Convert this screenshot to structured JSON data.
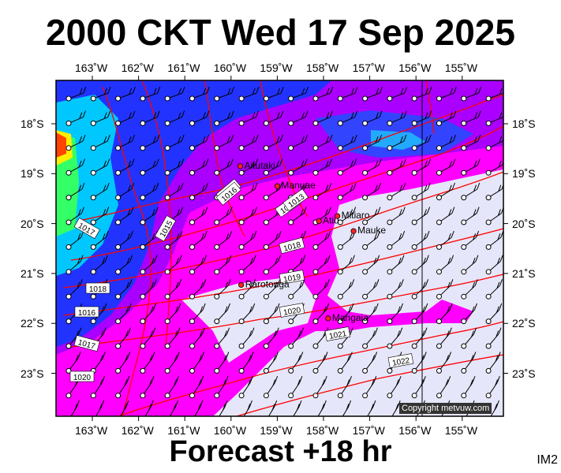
{
  "title": "2000 CKT Wed 17 Sep 2025",
  "footer": "Forecast +18 hr",
  "code": "IM2",
  "copyright": "Copyright metvuw.com",
  "lon_labels": [
    "163˚W",
    "162˚W",
    "161˚W",
    "160˚W",
    "159˚W",
    "158˚W",
    "157˚W",
    "156˚W",
    "155˚W"
  ],
  "lat_labels": [
    "18˚S",
    "19˚S",
    "20˚S",
    "21˚S",
    "22˚S",
    "23˚S"
  ],
  "places": [
    {
      "name": "Aitutaki",
      "lon": -159.8,
      "lat": -18.85
    },
    {
      "name": "Manuae",
      "lon": -159.0,
      "lat": -19.25
    },
    {
      "name": "Atiu",
      "lon": -158.1,
      "lat": -19.95
    },
    {
      "name": "Mitiaro",
      "lon": -157.7,
      "lat": -19.85
    },
    {
      "name": "Mauke",
      "lon": -157.35,
      "lat": -20.15
    },
    {
      "name": "Rarotonga",
      "lon": -159.78,
      "lat": -21.23
    },
    {
      "name": "Mangaia",
      "lon": -157.9,
      "lat": -21.9
    }
  ],
  "isobar_labels": [
    "1016",
    "1017",
    "1018",
    "1016",
    "1015",
    "1014",
    "1013",
    "1018",
    "1017",
    "1019",
    "1020",
    "1021",
    "1022",
    "1016",
    "1020"
  ],
  "colors": {
    "background": "#e6e6fa",
    "magenta": "#ff00ff",
    "purple": "#aa00ff",
    "blue": "#2222ff",
    "isobar": "#ff0000"
  }
}
